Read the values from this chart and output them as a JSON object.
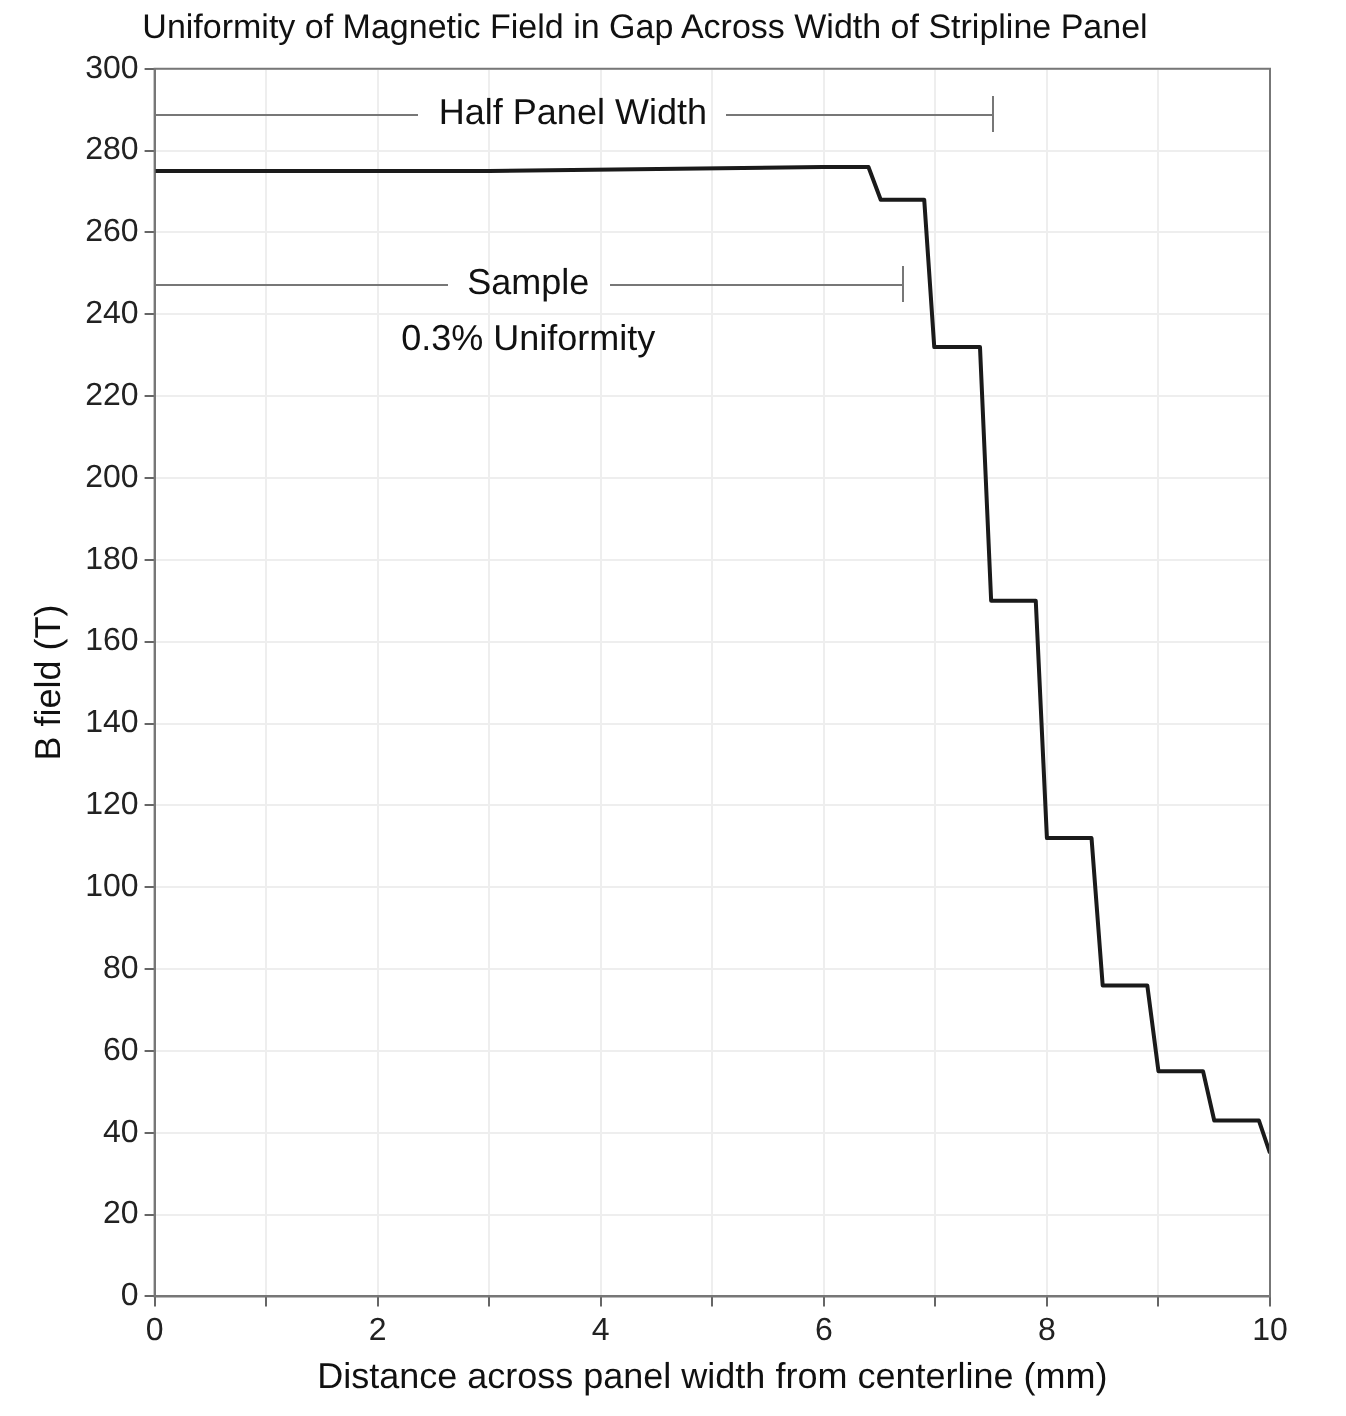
{
  "chart_data": {
    "type": "line",
    "title": "Uniformity of Magnetic Field in Gap Across Width of Stripline Panel",
    "xlabel": "Distance across panel width from centerline (mm)",
    "ylabel": "B field (T)",
    "series": [
      {
        "color": "#1a1a1a",
        "x": [
          0,
          3,
          5.99,
          6.4,
          6.51,
          6.9,
          6.99,
          7.4,
          7.5,
          7.9,
          8.0,
          8.4,
          8.5,
          8.9,
          9.0,
          9.4,
          9.5,
          9.9,
          10
        ],
        "values": [
          275,
          275,
          276,
          276,
          268,
          268,
          232,
          232,
          170,
          170,
          112,
          112,
          76,
          76,
          55,
          55,
          43,
          43,
          35
        ]
      }
    ],
    "xlim": [
      0,
      10
    ],
    "xticks": [
      0,
      {
        "value": 1,
        "label": null
      },
      2,
      {
        "value": 3,
        "label": null
      },
      4,
      {
        "value": 5,
        "label": null
      },
      6,
      {
        "value": 7,
        "label": null
      },
      8,
      {
        "value": 9,
        "label": null
      },
      10
    ],
    "ylim": [
      0,
      300
    ],
    "yticks": [
      0,
      20,
      40,
      60,
      80,
      100,
      120,
      140,
      160,
      180,
      200,
      220,
      240,
      260,
      280,
      300
    ],
    "grid": true,
    "legend": false,
    "marker": "none",
    "line_style": "solid",
    "annotations": [
      "Half Panel Width",
      "Sample",
      "0.3% Uniformity"
    ]
  }
}
